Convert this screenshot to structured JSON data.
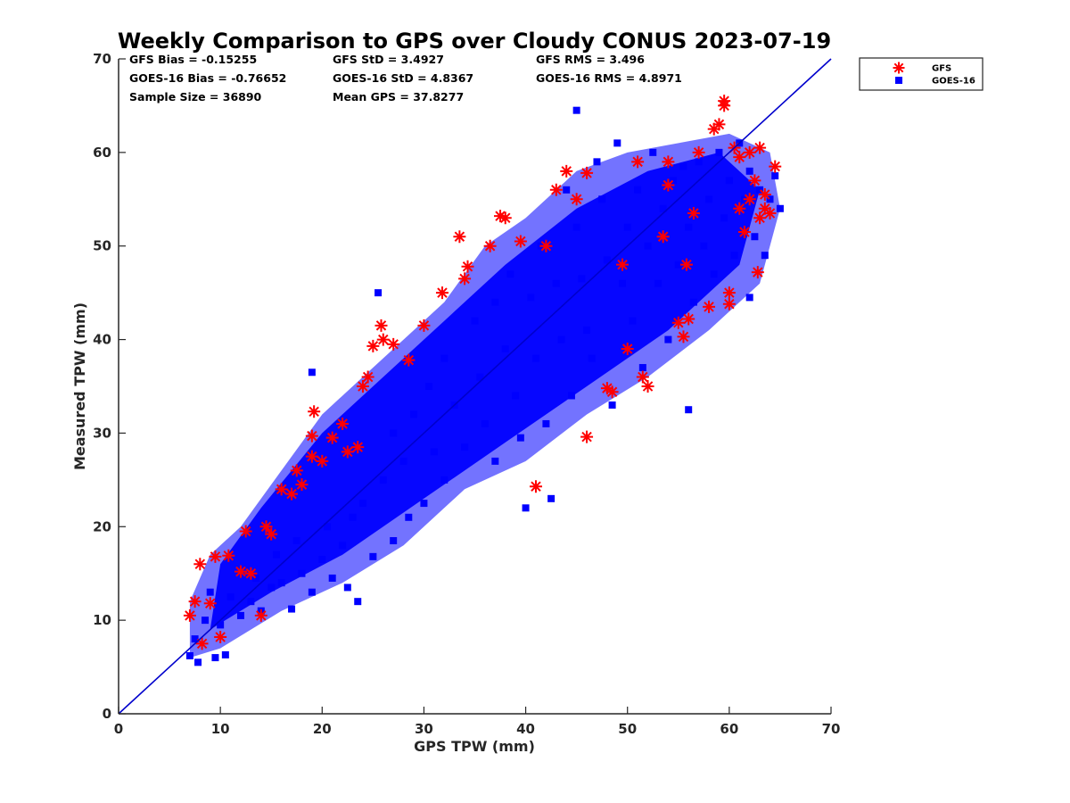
{
  "chart_data": {
    "type": "scatter",
    "title": "Weekly Comparison to GPS over Cloudy CONUS 2023-07-19",
    "xlabel": "GPS TPW (mm)",
    "ylabel": "Measured TPW (mm)",
    "xlim": [
      0,
      70
    ],
    "ylim": [
      0,
      70
    ],
    "xticks": [
      "0",
      "10",
      "20",
      "30",
      "40",
      "50",
      "60",
      "70"
    ],
    "yticks": [
      "0",
      "10",
      "20",
      "30",
      "40",
      "50",
      "60",
      "70"
    ],
    "grid": false,
    "legend_position": "outside-top-right",
    "reference_line": {
      "x": [
        0,
        70
      ],
      "y": [
        0,
        70
      ],
      "color": "#0000cc"
    },
    "stats": [
      {
        "text": "GFS Bias = -0.15255"
      },
      {
        "text": "GFS StD = 3.4927"
      },
      {
        "text": "GFS RMS = 3.496"
      },
      {
        "text": "GOES-16 Bias = -0.76652"
      },
      {
        "text": "GOES-16 StD = 4.8367"
      },
      {
        "text": "GOES-16 RMS = 4.8971"
      },
      {
        "text": "Sample Size = 36890"
      },
      {
        "text": "Mean GPS = 37.8277"
      }
    ],
    "series": [
      {
        "name": "GFS",
        "marker": "asterisk",
        "color": "#ff0000",
        "points": [
          [
            7,
            10.5
          ],
          [
            7.5,
            12
          ],
          [
            8,
            16
          ],
          [
            8.2,
            7.5
          ],
          [
            9,
            11.8
          ],
          [
            9.5,
            16.8
          ],
          [
            10,
            8.2
          ],
          [
            10.8,
            16.9
          ],
          [
            12,
            15.2
          ],
          [
            12.5,
            19.5
          ],
          [
            13,
            15
          ],
          [
            14,
            10.5
          ],
          [
            14.5,
            20
          ],
          [
            15,
            19.2
          ],
          [
            16,
            24
          ],
          [
            17,
            23.5
          ],
          [
            17.5,
            26
          ],
          [
            18,
            24.5
          ],
          [
            19,
            27.5
          ],
          [
            19,
            29.7
          ],
          [
            19.2,
            32.3
          ],
          [
            20,
            27
          ],
          [
            21,
            29.5
          ],
          [
            22,
            31
          ],
          [
            22.5,
            28
          ],
          [
            23.5,
            28.5
          ],
          [
            24,
            35
          ],
          [
            24.5,
            36
          ],
          [
            25,
            39.3
          ],
          [
            25.8,
            41.5
          ],
          [
            26,
            40
          ],
          [
            27,
            39.5
          ],
          [
            28.5,
            37.8
          ],
          [
            30,
            41.5
          ],
          [
            31.8,
            45
          ],
          [
            33.5,
            51
          ],
          [
            34,
            46.5
          ],
          [
            34.3,
            47.8
          ],
          [
            36.5,
            50
          ],
          [
            37.5,
            53.2
          ],
          [
            38,
            53
          ],
          [
            39.5,
            50.5
          ],
          [
            41,
            24.3
          ],
          [
            42,
            50
          ],
          [
            43,
            56
          ],
          [
            44,
            58
          ],
          [
            45,
            55
          ],
          [
            46,
            57.8
          ],
          [
            46,
            29.6
          ],
          [
            48,
            34.8
          ],
          [
            48.5,
            34.4
          ],
          [
            49.5,
            48
          ],
          [
            50,
            39
          ],
          [
            51,
            59
          ],
          [
            51.5,
            36
          ],
          [
            52,
            35
          ],
          [
            53.5,
            51
          ],
          [
            54,
            56.5
          ],
          [
            54,
            59
          ],
          [
            55,
            41.8
          ],
          [
            55.5,
            40.3
          ],
          [
            55.8,
            48
          ],
          [
            56,
            42.2
          ],
          [
            56.5,
            53.5
          ],
          [
            57,
            60
          ],
          [
            58,
            43.5
          ],
          [
            58.5,
            62.5
          ],
          [
            59,
            63
          ],
          [
            59.5,
            65.5
          ],
          [
            59.5,
            65
          ],
          [
            60,
            45
          ],
          [
            60,
            43.8
          ],
          [
            60.5,
            60.5
          ],
          [
            61,
            54
          ],
          [
            61,
            59.5
          ],
          [
            61.5,
            51.5
          ],
          [
            62,
            55
          ],
          [
            62,
            60
          ],
          [
            62.5,
            57
          ],
          [
            62.8,
            47.2
          ],
          [
            63,
            53
          ],
          [
            63,
            60.5
          ],
          [
            63.5,
            54
          ],
          [
            63.5,
            55.5
          ],
          [
            64,
            53.5
          ],
          [
            64.5,
            58.5
          ]
        ]
      },
      {
        "name": "GOES-16",
        "marker": "square",
        "color": "#0000ff",
        "points": [
          [
            7,
            6.2
          ],
          [
            7.5,
            8
          ],
          [
            7.8,
            5.5
          ],
          [
            8.5,
            10
          ],
          [
            9,
            13
          ],
          [
            9.5,
            6
          ],
          [
            10,
            9.5
          ],
          [
            10.5,
            6.3
          ],
          [
            11,
            12.5
          ],
          [
            12,
            10.5
          ],
          [
            13,
            12
          ],
          [
            13.5,
            14.5
          ],
          [
            14,
            11
          ],
          [
            15,
            13.5
          ],
          [
            15.5,
            17
          ],
          [
            16,
            14
          ],
          [
            17,
            11.2
          ],
          [
            17.5,
            18.5
          ],
          [
            18,
            15
          ],
          [
            19,
            13
          ],
          [
            19,
            36.5
          ],
          [
            20,
            16.5
          ],
          [
            20.5,
            20
          ],
          [
            21,
            14.5
          ],
          [
            22,
            18
          ],
          [
            22.5,
            13.5
          ],
          [
            23,
            21
          ],
          [
            23.5,
            12
          ],
          [
            24,
            22.5
          ],
          [
            25,
            16.8
          ],
          [
            25.5,
            45
          ],
          [
            26,
            25
          ],
          [
            27,
            18.5
          ],
          [
            27,
            30
          ],
          [
            28,
            27
          ],
          [
            28.5,
            21
          ],
          [
            29,
            32
          ],
          [
            30,
            22.5
          ],
          [
            30.5,
            35
          ],
          [
            31,
            28
          ],
          [
            32,
            25
          ],
          [
            32,
            38
          ],
          [
            33,
            33
          ],
          [
            34,
            28.5
          ],
          [
            35,
            42
          ],
          [
            35.5,
            36
          ],
          [
            36,
            31
          ],
          [
            37,
            44
          ],
          [
            37,
            27
          ],
          [
            38,
            39
          ],
          [
            38.5,
            47
          ],
          [
            39,
            34
          ],
          [
            39.5,
            29.5
          ],
          [
            40,
            22
          ],
          [
            40.5,
            44.5
          ],
          [
            41,
            38
          ],
          [
            41.5,
            50
          ],
          [
            42,
            31
          ],
          [
            42.5,
            23
          ],
          [
            43,
            46
          ],
          [
            43.5,
            40
          ],
          [
            44,
            56
          ],
          [
            44.5,
            34
          ],
          [
            45,
            52
          ],
          [
            45,
            64.5
          ],
          [
            45.5,
            46.5
          ],
          [
            46,
            41
          ],
          [
            46.5,
            38
          ],
          [
            47,
            59
          ],
          [
            47.5,
            55
          ],
          [
            48,
            48.5
          ],
          [
            48.5,
            33
          ],
          [
            49,
            61
          ],
          [
            49.5,
            46
          ],
          [
            50,
            52
          ],
          [
            50.5,
            42
          ],
          [
            51,
            56
          ],
          [
            51.5,
            37
          ],
          [
            52,
            50
          ],
          [
            52.5,
            60
          ],
          [
            53,
            46
          ],
          [
            53.5,
            54
          ],
          [
            54,
            40
          ],
          [
            54.5,
            57
          ],
          [
            55,
            48
          ],
          [
            55.5,
            58.5
          ],
          [
            56,
            32.5
          ],
          [
            56,
            52
          ],
          [
            56.5,
            44
          ],
          [
            57,
            59
          ],
          [
            57.5,
            50
          ],
          [
            58,
            55
          ],
          [
            58.5,
            47
          ],
          [
            59,
            60
          ],
          [
            59.5,
            53
          ],
          [
            60,
            57
          ],
          [
            60.5,
            49
          ],
          [
            61,
            61
          ],
          [
            61.5,
            55
          ],
          [
            62,
            44.5
          ],
          [
            62,
            58
          ],
          [
            62.5,
            51
          ],
          [
            63,
            56
          ],
          [
            63.5,
            49
          ],
          [
            64,
            55
          ],
          [
            64.5,
            57.5
          ],
          [
            65,
            54
          ]
        ]
      }
    ]
  }
}
